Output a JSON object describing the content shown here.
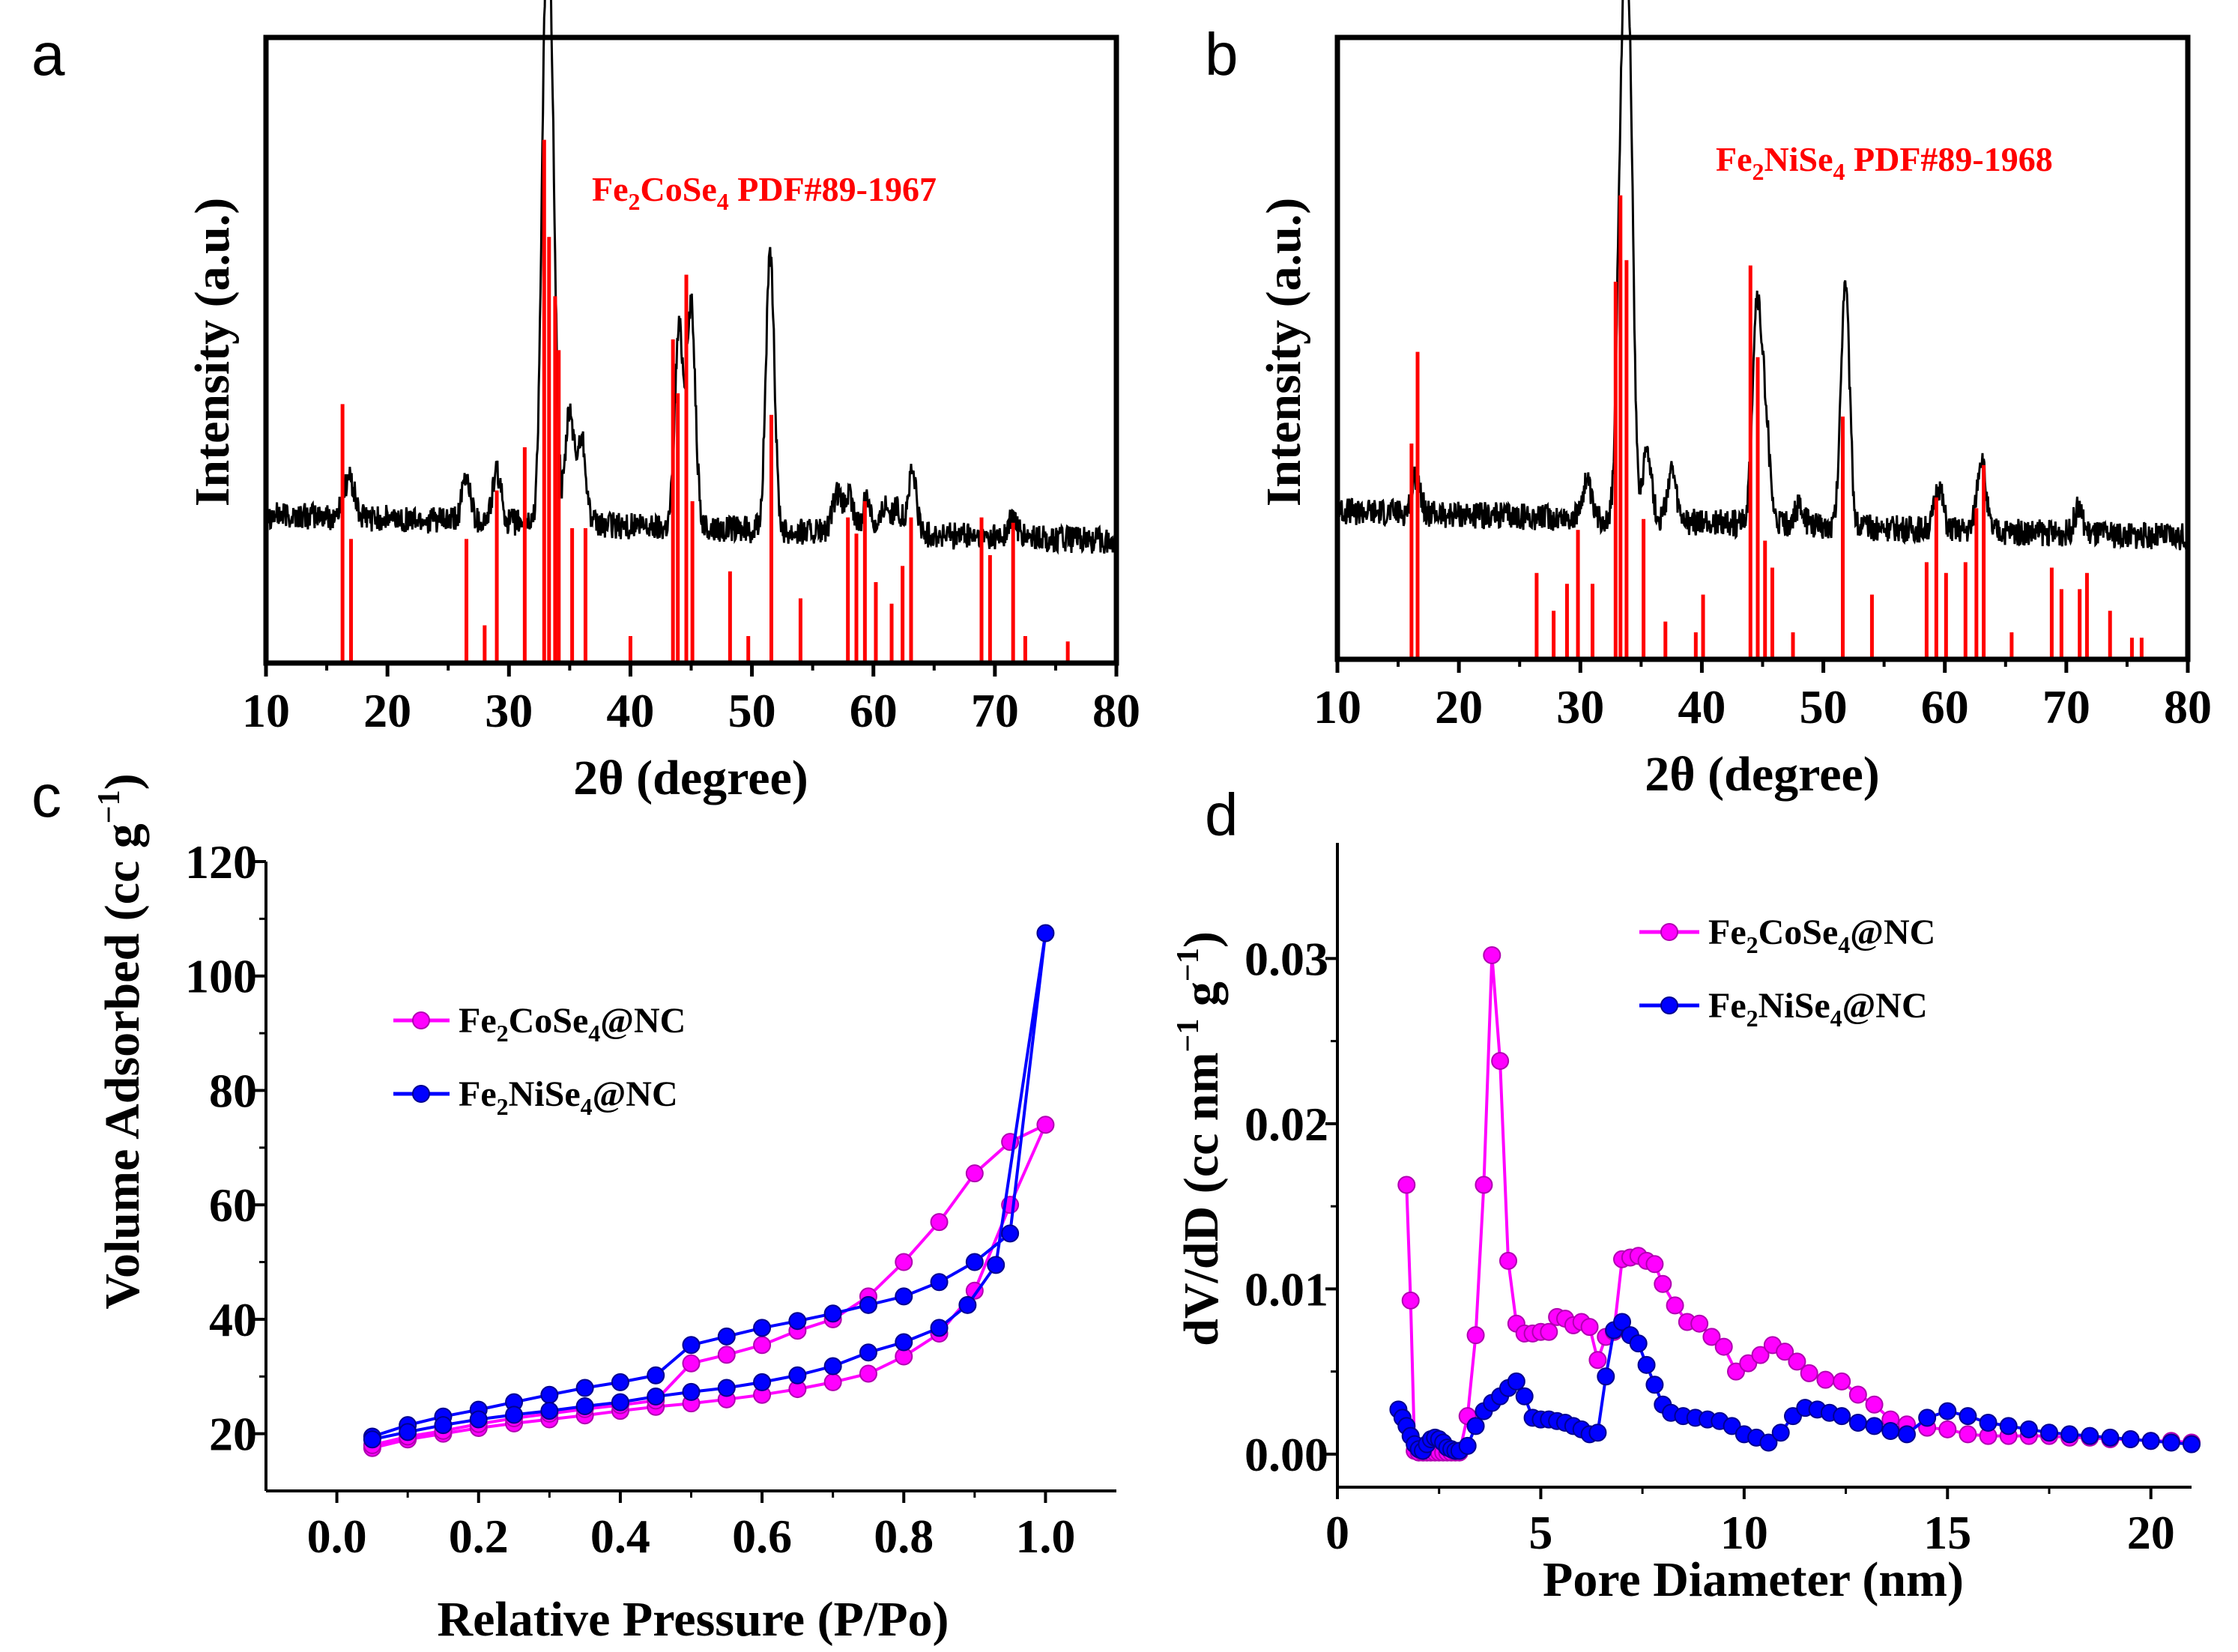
{
  "chart_data": [
    {
      "panel": "a",
      "type": "line",
      "title": "",
      "xlabel": "2θ (degree)",
      "ylabel": "Intensity (a.u.)",
      "xlim": [
        10,
        80
      ],
      "xticks": [
        10,
        20,
        30,
        40,
        50,
        60,
        70,
        80
      ],
      "annotation": {
        "formula": "Fe",
        "sub1": "2",
        "mid": "CoSe",
        "sub2": "4",
        "ref": " PDF#89-1967",
        "color": "#ff0000"
      },
      "xrd_peaks": [
        [
          16.5,
          0.15
        ],
        [
          17,
          0.25
        ],
        [
          26.5,
          0.35
        ],
        [
          29,
          0.4
        ],
        [
          33,
          3.5
        ],
        [
          33.5,
          2.8
        ],
        [
          35,
          0.9
        ],
        [
          36,
          0.7
        ],
        [
          44,
          1.6
        ],
        [
          45,
          1.8
        ],
        [
          51.5,
          2.2
        ],
        [
          57,
          0.3
        ],
        [
          58,
          0.3
        ],
        [
          59.5,
          0.3
        ],
        [
          61,
          0.25
        ],
        [
          62,
          0.2
        ],
        [
          63.2,
          0.5
        ],
        [
          71.5,
          0.15
        ]
      ],
      "reference_sticks": [
        [
          16.3,
          0.48
        ],
        [
          17,
          0.23
        ],
        [
          26.5,
          0.23
        ],
        [
          28,
          0.07
        ],
        [
          29,
          0.32
        ],
        [
          31.3,
          0.4
        ],
        [
          32.9,
          0.97
        ],
        [
          33.3,
          0.79
        ],
        [
          33.8,
          0.68
        ],
        [
          34.1,
          0.58
        ],
        [
          35.2,
          0.25
        ],
        [
          36.3,
          0.25
        ],
        [
          40,
          0.05
        ],
        [
          43.5,
          0.6
        ],
        [
          43.9,
          0.5
        ],
        [
          44.6,
          0.72
        ],
        [
          45.1,
          0.3
        ],
        [
          48.2,
          0.17
        ],
        [
          49.7,
          0.05
        ],
        [
          51.6,
          0.46
        ],
        [
          54,
          0.12
        ],
        [
          57.9,
          0.27
        ],
        [
          58.6,
          0.24
        ],
        [
          59.3,
          0.3
        ],
        [
          60.2,
          0.15
        ],
        [
          61.5,
          0.11
        ],
        [
          62.4,
          0.18
        ],
        [
          63.1,
          0.27
        ],
        [
          68.9,
          0.27
        ],
        [
          69.6,
          0.2
        ],
        [
          71.5,
          0.26
        ],
        [
          72.5,
          0.05
        ],
        [
          76,
          0.04
        ]
      ],
      "reference_color": "#ff0000",
      "pattern_color": "#000000"
    },
    {
      "panel": "b",
      "type": "line",
      "title": "",
      "xlabel": "2θ (degree)",
      "ylabel": "Intensity (a.u.)",
      "xlim": [
        10,
        80
      ],
      "xticks": [
        10,
        20,
        30,
        40,
        50,
        60,
        70,
        80
      ],
      "annotation": {
        "formula": "Fe",
        "sub1": "2",
        "mid": "NiSe",
        "sub2": "4",
        "ref": " PDF#89-1968",
        "color": "#ff0000"
      },
      "xrd_peaks": [
        [
          16.5,
          0.3
        ],
        [
          30.5,
          0.3
        ],
        [
          33.4,
          3.0
        ],
        [
          34,
          3.6
        ],
        [
          35.5,
          0.6
        ],
        [
          37.5,
          0.4
        ],
        [
          44.5,
          1.7
        ],
        [
          45.2,
          0.9
        ],
        [
          48,
          0.15
        ],
        [
          51.8,
          2.0
        ],
        [
          59.5,
          0.35
        ],
        [
          63,
          0.6
        ],
        [
          71,
          0.2
        ]
      ],
      "reference_sticks": [
        [
          16.1,
          0.4
        ],
        [
          16.6,
          0.57
        ],
        [
          26.4,
          0.16
        ],
        [
          27.8,
          0.09
        ],
        [
          28.9,
          0.14
        ],
        [
          29.8,
          0.24
        ],
        [
          31,
          0.14
        ],
        [
          32.9,
          0.7
        ],
        [
          33.3,
          0.86
        ],
        [
          33.8,
          0.74
        ],
        [
          35.2,
          0.26
        ],
        [
          37,
          0.07
        ],
        [
          39.5,
          0.05
        ],
        [
          40.1,
          0.12
        ],
        [
          44,
          0.73
        ],
        [
          44.6,
          0.56
        ],
        [
          45.2,
          0.22
        ],
        [
          45.8,
          0.17
        ],
        [
          47.5,
          0.05
        ],
        [
          51.6,
          0.45
        ],
        [
          54,
          0.12
        ],
        [
          58.5,
          0.18
        ],
        [
          59.3,
          0.3
        ],
        [
          60.1,
          0.16
        ],
        [
          61.7,
          0.18
        ],
        [
          62.6,
          0.28
        ],
        [
          63.2,
          0.36
        ],
        [
          65.5,
          0.05
        ],
        [
          68.8,
          0.17
        ],
        [
          69.6,
          0.13
        ],
        [
          71.1,
          0.13
        ],
        [
          71.7,
          0.16
        ],
        [
          73.6,
          0.09
        ],
        [
          75.4,
          0.04
        ],
        [
          76.2,
          0.04
        ]
      ],
      "reference_color": "#ff0000",
      "pattern_color": "#000000"
    },
    {
      "panel": "c",
      "type": "line",
      "title": "",
      "xlabel": "Relative Pressure (P/Po)",
      "ylabel": "Volume Adsorbed (cc g",
      "ylabel_sup": "−1",
      "ylabel_end": ")",
      "xlim": [
        -0.1,
        1.1
      ],
      "ylim": [
        10,
        120
      ],
      "xticks": [
        "0.0",
        "0.2",
        "0.4",
        "0.6",
        "0.8",
        "1.0"
      ],
      "yticks": [
        "20",
        "40",
        "60",
        "80",
        "100",
        "120"
      ],
      "series": [
        {
          "name": "Fe2CoSe4@NC",
          "legend_label": {
            "a": "Fe",
            "s1": "2",
            "b": "CoSe",
            "s2": "4",
            "c": "@NC"
          },
          "color": "#ff00ff",
          "x": [
            0.05,
            0.1,
            0.15,
            0.2,
            0.25,
            0.3,
            0.35,
            0.4,
            0.45,
            0.5,
            0.55,
            0.6,
            0.65,
            0.7,
            0.75,
            0.8,
            0.85,
            0.9,
            0.95,
            1.0,
            0.95,
            0.9,
            0.85,
            0.8,
            0.75,
            0.7,
            0.65,
            0.6,
            0.55,
            0.5,
            0.45,
            0.4,
            0.35,
            0.3,
            0.25,
            0.2,
            0.15,
            0.1,
            0.05
          ],
          "y": [
            17.5,
            19,
            20,
            21,
            21.8,
            22.5,
            23.2,
            24,
            24.7,
            25.3,
            26,
            26.8,
            27.8,
            29,
            30.5,
            33.5,
            37.5,
            45,
            60,
            74,
            71,
            65.5,
            57,
            50,
            44,
            40,
            38,
            35.5,
            33.8,
            32.3,
            25.8,
            25,
            24.3,
            23.5,
            22.7,
            21.7,
            20.5,
            19.5,
            18
          ]
        },
        {
          "name": "Fe2NiSe4@NC",
          "legend_label": {
            "a": "Fe",
            "s1": "2",
            "b": "NiSe",
            "s2": "4",
            "c": "@NC"
          },
          "color": "#0000ff",
          "x": [
            0.05,
            0.1,
            0.15,
            0.2,
            0.25,
            0.3,
            0.35,
            0.4,
            0.45,
            0.5,
            0.55,
            0.6,
            0.65,
            0.7,
            0.75,
            0.8,
            0.85,
            0.9,
            0.95,
            1.0,
            0.93,
            0.89,
            0.85,
            0.8,
            0.75,
            0.7,
            0.65,
            0.6,
            0.55,
            0.5,
            0.45,
            0.4,
            0.35,
            0.3,
            0.25,
            0.2,
            0.15,
            0.1,
            0.05
          ],
          "y": [
            19.5,
            21.5,
            23,
            24.2,
            25.5,
            26.8,
            28,
            29,
            30.2,
            35.5,
            37,
            38.5,
            39.7,
            41,
            42.5,
            44,
            46.5,
            50,
            55,
            107.5,
            49.5,
            42.5,
            38.5,
            36,
            34.2,
            31.8,
            30.2,
            29,
            28,
            27.3,
            26.5,
            25.5,
            24.8,
            24,
            23.3,
            22.5,
            21.5,
            20.3,
            19
          ]
        }
      ]
    },
    {
      "panel": "d",
      "type": "line",
      "title": "",
      "xlabel": "Pore Diameter (nm)",
      "ylabel": "dV/dD (cc nm",
      "ylabel_sup": "−1",
      "ylabel_mid": " g",
      "ylabel_sup2": "−1",
      "ylabel_end": ")",
      "xlim": [
        0,
        21
      ],
      "ylim": [
        -0.002,
        0.037
      ],
      "xticks": [
        "0",
        "5",
        "10",
        "15",
        "20"
      ],
      "yticks": [
        "0.00",
        "0.01",
        "0.02",
        "0.03"
      ],
      "series": [
        {
          "name": "Fe2CoSe4@NC",
          "legend_label": {
            "a": "Fe",
            "s1": "2",
            "b": "CoSe",
            "s2": "4",
            "c": "@NC"
          },
          "color": "#ff00ff",
          "x": [
            1.7,
            1.8,
            1.9,
            2.0,
            2.1,
            2.2,
            2.3,
            2.4,
            2.5,
            2.6,
            2.7,
            2.8,
            2.9,
            3.0,
            3.2,
            3.4,
            3.6,
            3.8,
            4.0,
            4.2,
            4.4,
            4.6,
            4.8,
            5.0,
            5.2,
            5.4,
            5.6,
            5.8,
            6.0,
            6.2,
            6.4,
            6.6,
            6.8,
            7.0,
            7.2,
            7.4,
            7.6,
            7.8,
            8.0,
            8.3,
            8.6,
            8.9,
            9.2,
            9.5,
            9.8,
            10.1,
            10.4,
            10.7,
            11.0,
            11.3,
            11.6,
            12.0,
            12.4,
            12.8,
            13.2,
            13.6,
            14.0,
            14.5,
            15.0,
            15.5,
            16.0,
            16.5,
            17.0,
            17.5,
            18.0,
            18.5,
            19.0,
            19.5,
            20.0,
            20.5,
            21.0
          ],
          "y": [
            0.0163,
            0.0093,
            0.0002,
            0.0001,
            0.0001,
            0.0001,
            0.0001,
            0.0001,
            0.0001,
            0.0001,
            0.0001,
            0.0001,
            0.0001,
            0.0001,
            0.0023,
            0.0072,
            0.0163,
            0.0302,
            0.0238,
            0.0117,
            0.0079,
            0.0073,
            0.0073,
            0.0074,
            0.0074,
            0.0083,
            0.0082,
            0.0078,
            0.008,
            0.0077,
            0.0057,
            0.0071,
            0.0074,
            0.0118,
            0.0119,
            0.012,
            0.0117,
            0.0115,
            0.0103,
            0.009,
            0.008,
            0.0079,
            0.0071,
            0.0065,
            0.005,
            0.0055,
            0.006,
            0.0066,
            0.0062,
            0.0056,
            0.0049,
            0.0045,
            0.0044,
            0.0036,
            0.003,
            0.0021,
            0.0018,
            0.0016,
            0.0015,
            0.0012,
            0.0011,
            0.0011,
            0.0011,
            0.0011,
            0.001,
            0.001,
            0.0009,
            0.0009,
            0.0008,
            0.0008,
            0.0007
          ]
        },
        {
          "name": "Fe2NiSe4@NC",
          "legend_label": {
            "a": "Fe",
            "s1": "2",
            "b": "NiSe",
            "s2": "4",
            "c": "@NC"
          },
          "color": "#0000ff",
          "x": [
            1.5,
            1.6,
            1.7,
            1.8,
            1.9,
            2.0,
            2.1,
            2.2,
            2.3,
            2.4,
            2.5,
            2.6,
            2.7,
            2.8,
            2.9,
            3.0,
            3.2,
            3.4,
            3.6,
            3.8,
            4.0,
            4.2,
            4.4,
            4.6,
            4.8,
            5.0,
            5.2,
            5.4,
            5.6,
            5.8,
            6.0,
            6.2,
            6.4,
            6.6,
            6.8,
            7.0,
            7.2,
            7.4,
            7.6,
            7.8,
            8.0,
            8.2,
            8.5,
            8.8,
            9.1,
            9.4,
            9.7,
            10.0,
            10.3,
            10.6,
            10.9,
            11.2,
            11.5,
            11.8,
            12.1,
            12.4,
            12.8,
            13.2,
            13.6,
            14.0,
            14.5,
            15.0,
            15.5,
            16.0,
            16.5,
            17.0,
            17.5,
            18.0,
            18.5,
            19.0,
            19.5,
            20.0,
            20.5,
            21.0
          ],
          "y": [
            0.0027,
            0.0022,
            0.0017,
            0.0011,
            0.0006,
            0.0003,
            0.0002,
            0.0006,
            0.0009,
            0.001,
            0.0009,
            0.0007,
            0.0004,
            0.0003,
            0.0002,
            0.0002,
            0.0005,
            0.0017,
            0.0026,
            0.0031,
            0.0035,
            0.004,
            0.0044,
            0.0035,
            0.0022,
            0.0021,
            0.0021,
            0.002,
            0.0019,
            0.0017,
            0.0015,
            0.0012,
            0.0013,
            0.0047,
            0.0075,
            0.008,
            0.0072,
            0.0067,
            0.0054,
            0.0042,
            0.003,
            0.0025,
            0.0023,
            0.0022,
            0.0021,
            0.002,
            0.0017,
            0.0012,
            0.001,
            0.0007,
            0.0013,
            0.0023,
            0.0028,
            0.0027,
            0.0025,
            0.0023,
            0.0019,
            0.0017,
            0.0014,
            0.0012,
            0.0022,
            0.0026,
            0.0023,
            0.0019,
            0.0017,
            0.0015,
            0.0013,
            0.0012,
            0.0011,
            0.001,
            0.0009,
            0.0008,
            0.0007,
            0.0006
          ]
        }
      ]
    }
  ]
}
